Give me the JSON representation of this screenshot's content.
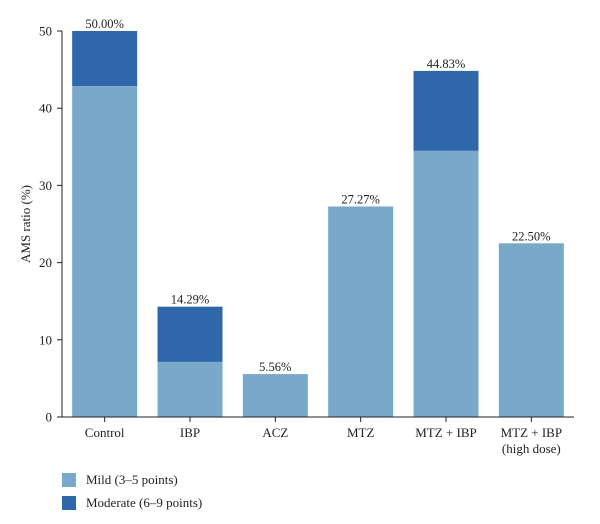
{
  "chart_data": {
    "type": "bar",
    "stacked": true,
    "categories": [
      [
        "Control"
      ],
      [
        "IBP"
      ],
      [
        "ACZ"
      ],
      [
        "MTZ"
      ],
      [
        "MTZ + IBP"
      ],
      [
        "MTZ + IBP",
        "(high dose)"
      ]
    ],
    "series": [
      {
        "name": "Mild (3–5 points)",
        "color": "#79a9c9",
        "values": [
          42.86,
          7.14,
          5.56,
          27.27,
          34.48,
          22.5
        ]
      },
      {
        "name": "Moderate (6–9 points)",
        "color": "#2f67ab",
        "values": [
          7.14,
          7.15,
          0,
          0,
          10.35,
          0
        ]
      }
    ],
    "data_labels": [
      "50.00%",
      "14.29%",
      "5.56%",
      "27.27%",
      "44.83%",
      "22.50%"
    ],
    "ylabel": "AMS ratio (%)",
    "xlabel": "",
    "title": "",
    "ylim": [
      0,
      50
    ],
    "yticks": [
      0,
      10,
      20,
      30,
      40,
      50
    ],
    "grid": false,
    "legend_position": "bottom-left"
  }
}
